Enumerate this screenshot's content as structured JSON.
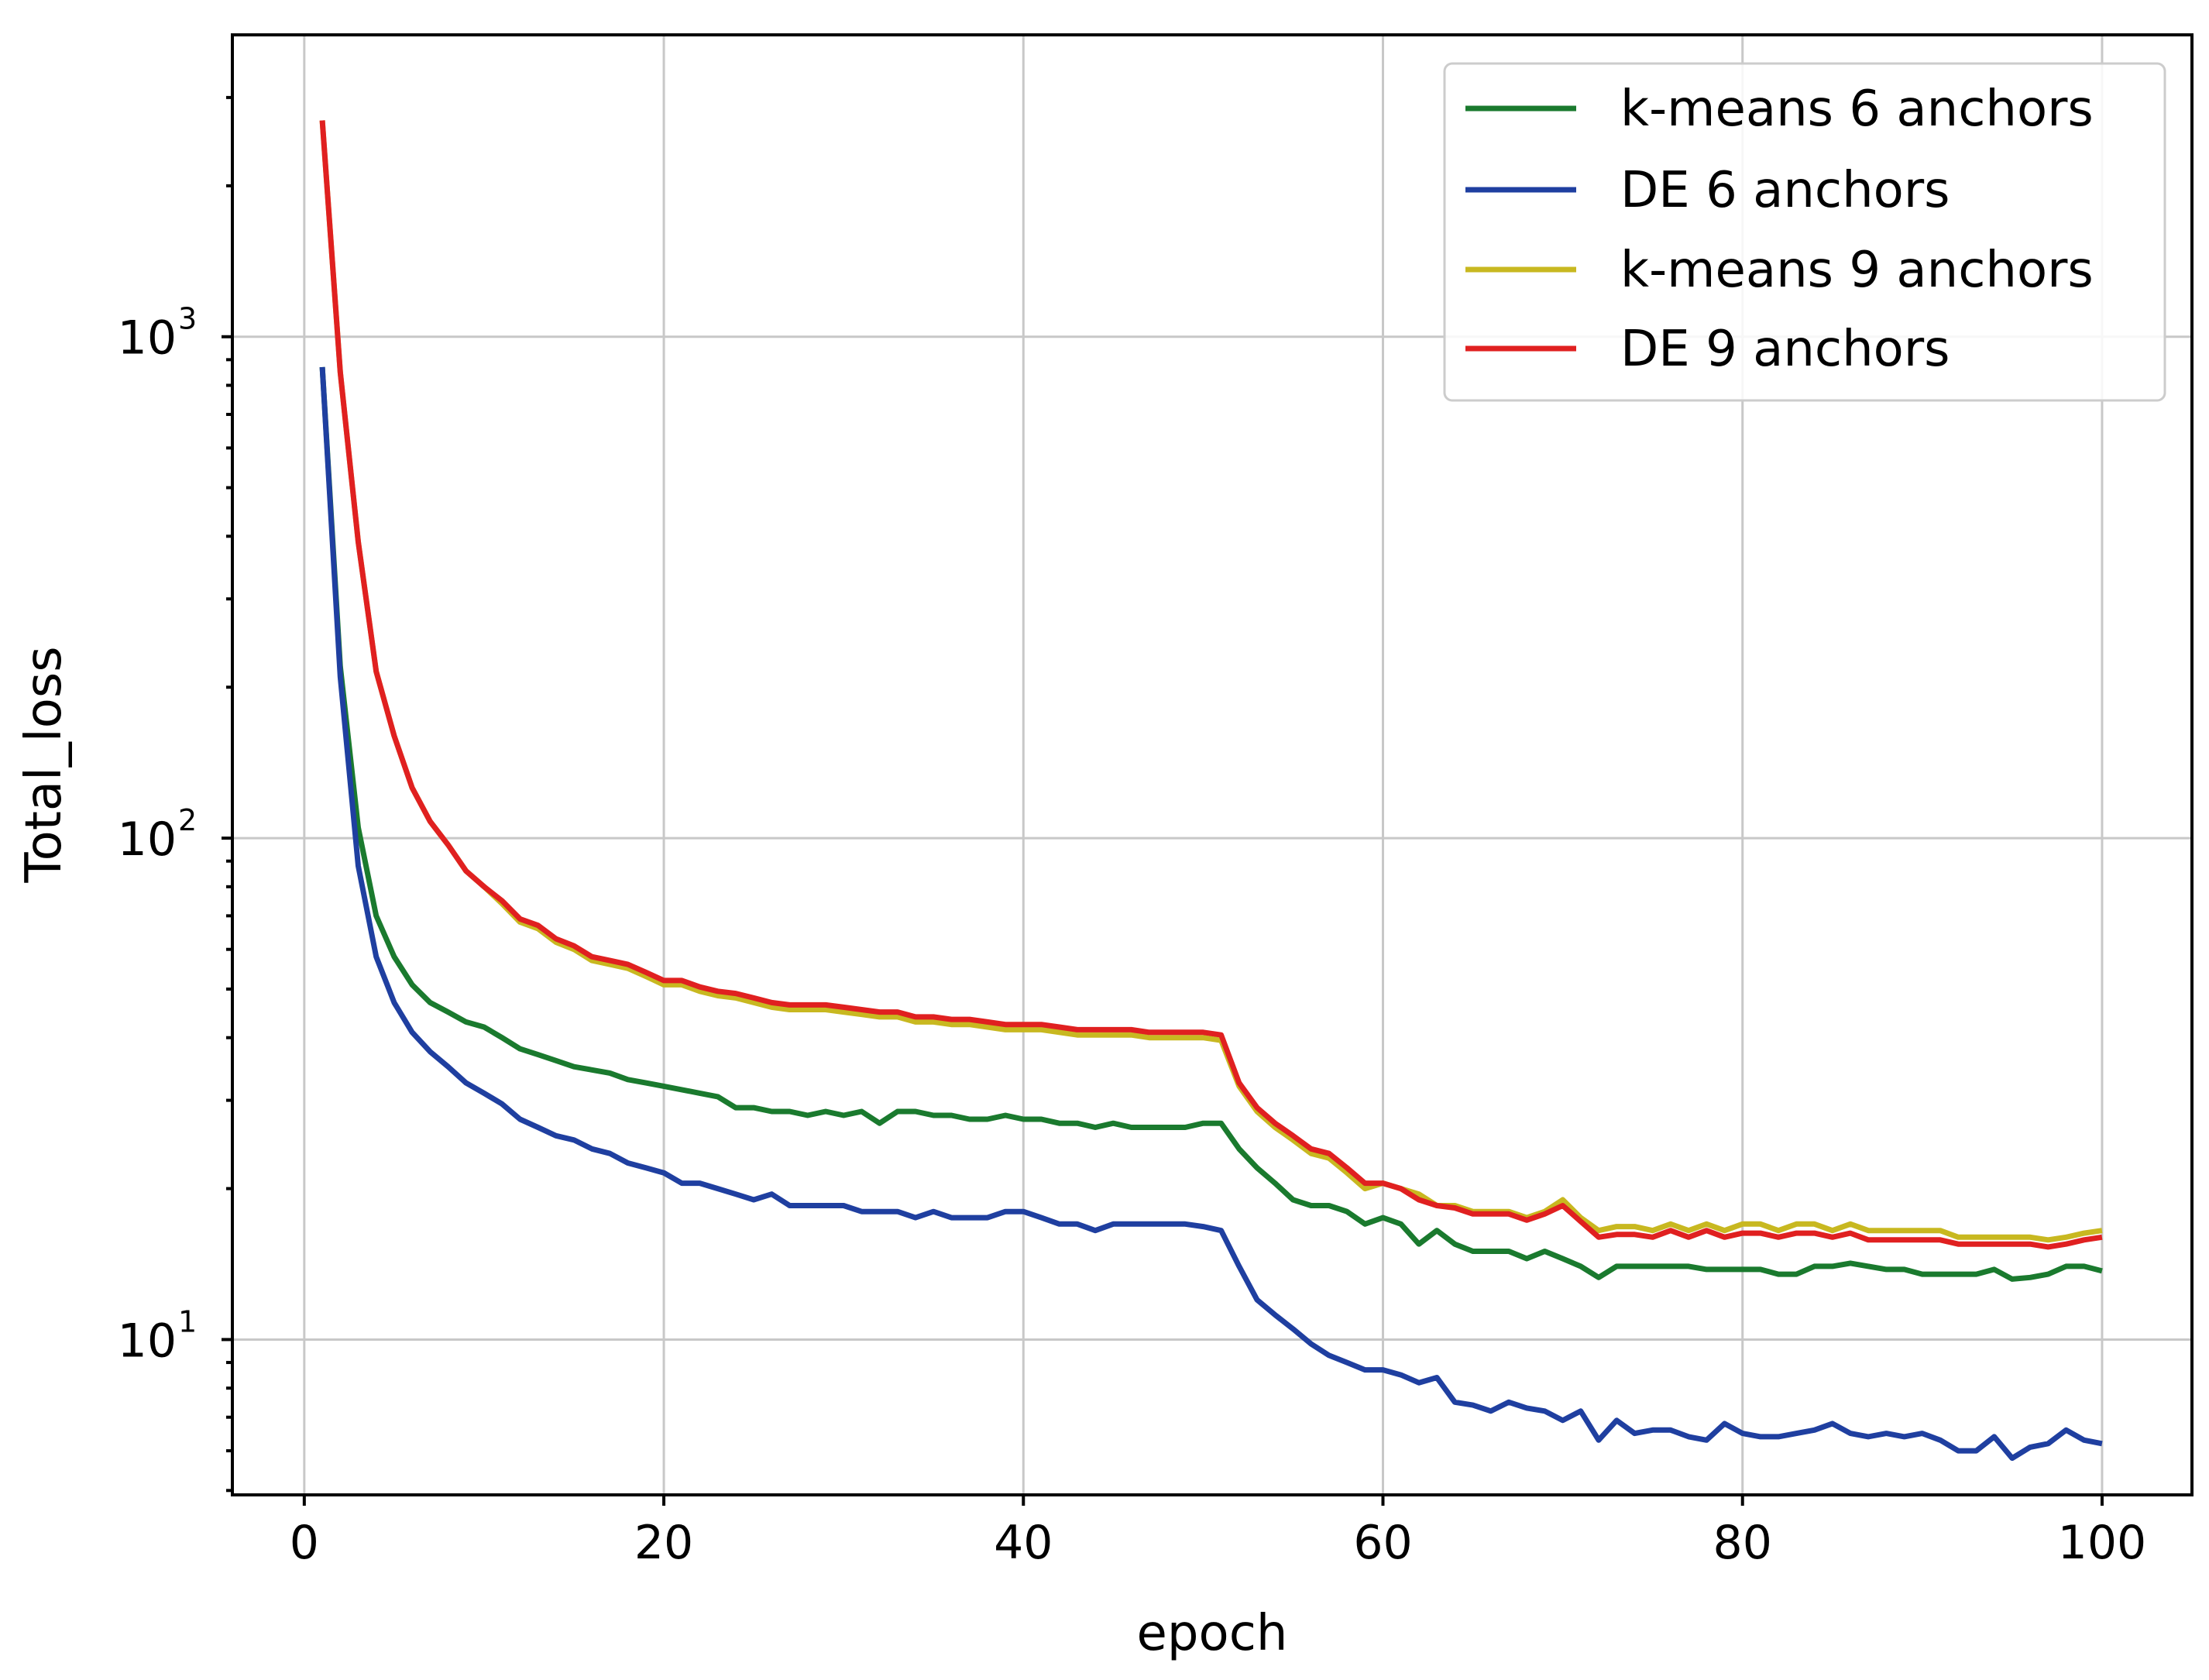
{
  "chart_data": {
    "type": "line",
    "title": "",
    "xlabel": "epoch",
    "ylabel": "Total_loss",
    "xlim": [
      -4,
      105
    ],
    "ylim": [
      4.9,
      4000
    ],
    "yscale": "log",
    "grid": true,
    "legend_position": "top-right",
    "x_ticks": [
      0,
      20,
      40,
      60,
      80,
      100
    ],
    "x_tick_labels": [
      "0",
      "20",
      "40",
      "60",
      "80",
      "100"
    ],
    "y_ticks": [
      {
        "value": 10,
        "base": "10",
        "exponent": "1"
      },
      {
        "value": 100,
        "base": "10",
        "exponent": "2"
      },
      {
        "value": 1000,
        "base": "10",
        "exponent": "3"
      }
    ],
    "series": [
      {
        "name": "k-means 6 anchors",
        "color": "#1a7a2e",
        "x": [
          1,
          2,
          3,
          4,
          5,
          6,
          7,
          8,
          9,
          10,
          11,
          12,
          13,
          14,
          15,
          16,
          17,
          18,
          19,
          20,
          21,
          22,
          23,
          24,
          25,
          26,
          27,
          28,
          29,
          30,
          31,
          32,
          33,
          34,
          35,
          36,
          37,
          38,
          39,
          40,
          41,
          42,
          43,
          44,
          45,
          46,
          47,
          48,
          49,
          50,
          51,
          52,
          53,
          54,
          55,
          56,
          57,
          58,
          59,
          60,
          61,
          62,
          63,
          64,
          65,
          66,
          67,
          68,
          69,
          70,
          71,
          72,
          73,
          74,
          75,
          76,
          77,
          78,
          79,
          80,
          81,
          82,
          83,
          84,
          85,
          86,
          87,
          88,
          89,
          90,
          91,
          92,
          93,
          94,
          95,
          96,
          97,
          98,
          99,
          100
        ],
        "values": [
          870,
          220,
          105,
          70,
          58,
          51,
          47,
          45,
          43,
          42,
          40,
          38,
          37,
          36,
          35,
          34.5,
          34,
          33,
          32.5,
          32,
          31.5,
          31,
          30.5,
          29,
          29,
          28.5,
          28.5,
          28,
          28.5,
          28,
          28.5,
          27,
          28.5,
          28.5,
          28,
          28,
          27.5,
          27.5,
          28,
          27.5,
          27.5,
          27,
          27,
          26.5,
          27,
          26.5,
          26.5,
          26.5,
          26.5,
          27,
          27,
          24,
          22,
          20.5,
          19,
          18.5,
          18.5,
          18,
          17,
          17.5,
          17,
          15.5,
          16.5,
          15.5,
          15,
          15,
          15,
          14.5,
          15,
          14.5,
          14,
          13.3,
          14,
          14,
          14,
          14,
          14,
          13.8,
          13.8,
          13.8,
          13.8,
          13.5,
          13.5,
          14,
          14,
          14.2,
          14,
          13.8,
          13.8,
          13.5,
          13.5,
          13.5,
          13.5,
          13.8,
          13.2,
          13.3,
          13.5,
          14,
          14,
          13.7
        ]
      },
      {
        "name": "DE 6 anchors",
        "color": "#1f3fa0",
        "x": [
          1,
          2,
          3,
          4,
          5,
          6,
          7,
          8,
          9,
          10,
          11,
          12,
          13,
          14,
          15,
          16,
          17,
          18,
          19,
          20,
          21,
          22,
          23,
          24,
          25,
          26,
          27,
          28,
          29,
          30,
          31,
          32,
          33,
          34,
          35,
          36,
          37,
          38,
          39,
          40,
          41,
          42,
          43,
          44,
          45,
          46,
          47,
          48,
          49,
          50,
          51,
          52,
          53,
          54,
          55,
          56,
          57,
          58,
          59,
          60,
          61,
          62,
          63,
          64,
          65,
          66,
          67,
          68,
          69,
          70,
          71,
          72,
          73,
          74,
          75,
          76,
          77,
          78,
          79,
          80,
          81,
          82,
          83,
          84,
          85,
          86,
          87,
          88,
          89,
          90,
          91,
          92,
          93,
          94,
          95,
          96,
          97,
          98,
          99,
          100
        ],
        "values": [
          870,
          210,
          88,
          58,
          47,
          41,
          37.5,
          35,
          32.5,
          31,
          29.5,
          27.5,
          26.5,
          25.5,
          25,
          24,
          23.5,
          22.5,
          22,
          21.5,
          20.5,
          20.5,
          20,
          19.5,
          19,
          19.5,
          18.5,
          18.5,
          18.5,
          18.5,
          18,
          18,
          18,
          17.5,
          18,
          17.5,
          17.5,
          17.5,
          18,
          18,
          17.5,
          17,
          17,
          16.5,
          17,
          17,
          17,
          17,
          17,
          16.8,
          16.5,
          14,
          12,
          11.2,
          10.5,
          9.8,
          9.3,
          9,
          8.7,
          8.7,
          8.5,
          8.2,
          8.4,
          7.5,
          7.4,
          7.2,
          7.5,
          7.3,
          7.2,
          6.9,
          7.2,
          6.3,
          6.9,
          6.5,
          6.6,
          6.6,
          6.4,
          6.3,
          6.8,
          6.5,
          6.4,
          6.4,
          6.5,
          6.6,
          6.8,
          6.5,
          6.4,
          6.5,
          6.4,
          6.5,
          6.3,
          6,
          6,
          6.4,
          5.8,
          6.1,
          6.2,
          6.6,
          6.3,
          6.2
        ]
      },
      {
        "name": "k-means 9 anchors",
        "color": "#c8b820",
        "x": [
          1,
          2,
          3,
          4,
          5,
          6,
          7,
          8,
          9,
          10,
          11,
          12,
          13,
          14,
          15,
          16,
          17,
          18,
          19,
          20,
          21,
          22,
          23,
          24,
          25,
          26,
          27,
          28,
          29,
          30,
          31,
          32,
          33,
          34,
          35,
          36,
          37,
          38,
          39,
          40,
          41,
          42,
          43,
          44,
          45,
          46,
          47,
          48,
          49,
          50,
          51,
          52,
          53,
          54,
          55,
          56,
          57,
          58,
          59,
          60,
          61,
          62,
          63,
          64,
          65,
          66,
          67,
          68,
          69,
          70,
          71,
          72,
          73,
          74,
          75,
          76,
          77,
          78,
          79,
          80,
          81,
          82,
          83,
          84,
          85,
          86,
          87,
          88,
          89,
          90,
          91,
          92,
          93,
          94,
          95,
          96,
          97,
          98,
          99,
          100
        ],
        "values": [
          2700,
          850,
          390,
          215,
          160,
          126,
          108,
          97,
          86,
          80,
          74,
          68,
          66,
          62,
          60,
          57,
          56,
          55,
          53,
          51,
          51,
          49.5,
          48.5,
          48,
          47,
          46,
          45.5,
          45.5,
          45.5,
          45,
          44.5,
          44,
          44,
          43,
          43,
          42.5,
          42.5,
          42,
          41.5,
          41.5,
          41.5,
          41,
          40.5,
          40.5,
          40.5,
          40.5,
          40,
          40,
          40,
          40,
          39.5,
          32,
          28.5,
          26.5,
          25,
          23.5,
          23,
          21.5,
          20,
          20.5,
          20,
          19.5,
          18.5,
          18.5,
          18,
          18,
          18,
          17.5,
          18,
          19,
          17.5,
          16.5,
          16.8,
          16.8,
          16.5,
          17,
          16.5,
          17,
          16.5,
          17,
          17,
          16.5,
          17,
          17,
          16.5,
          17,
          16.5,
          16.5,
          16.5,
          16.5,
          16.5,
          16,
          16,
          16,
          16,
          16,
          15.8,
          16,
          16.3,
          16.5
        ]
      },
      {
        "name": "DE 9 anchors",
        "color": "#e02020",
        "x": [
          1,
          2,
          3,
          4,
          5,
          6,
          7,
          8,
          9,
          10,
          11,
          12,
          13,
          14,
          15,
          16,
          17,
          18,
          19,
          20,
          21,
          22,
          23,
          24,
          25,
          26,
          27,
          28,
          29,
          30,
          31,
          32,
          33,
          34,
          35,
          36,
          37,
          38,
          39,
          40,
          41,
          42,
          43,
          44,
          45,
          46,
          47,
          48,
          49,
          50,
          51,
          52,
          53,
          54,
          55,
          56,
          57,
          58,
          59,
          60,
          61,
          62,
          63,
          64,
          65,
          66,
          67,
          68,
          69,
          70,
          71,
          72,
          73,
          74,
          75,
          76,
          77,
          78,
          79,
          80,
          81,
          82,
          83,
          84,
          85,
          86,
          87,
          88,
          89,
          90,
          91,
          92,
          93,
          94,
          95,
          96,
          97,
          98,
          99,
          100
        ],
        "values": [
          2700,
          850,
          390,
          215,
          160,
          126,
          108,
          97,
          86,
          80,
          75,
          69,
          67,
          63,
          61,
          58,
          57,
          56,
          54,
          52,
          52,
          50.5,
          49.5,
          49,
          48,
          47,
          46.5,
          46.5,
          46.5,
          46,
          45.5,
          45,
          45,
          44,
          44,
          43.5,
          43.5,
          43,
          42.5,
          42.5,
          42.5,
          42,
          41.5,
          41.5,
          41.5,
          41.5,
          41,
          41,
          41,
          41,
          40.5,
          32.5,
          29,
          27,
          25.5,
          24,
          23.5,
          22,
          20.5,
          20.5,
          20,
          19,
          18.5,
          18.3,
          17.8,
          17.8,
          17.8,
          17.3,
          17.8,
          18.5,
          17.2,
          16,
          16.2,
          16.2,
          16,
          16.5,
          16,
          16.5,
          16,
          16.3,
          16.3,
          16,
          16.3,
          16.3,
          16,
          16.3,
          15.8,
          15.8,
          15.8,
          15.8,
          15.8,
          15.5,
          15.5,
          15.5,
          15.5,
          15.5,
          15.3,
          15.5,
          15.8,
          16
        ]
      }
    ]
  }
}
